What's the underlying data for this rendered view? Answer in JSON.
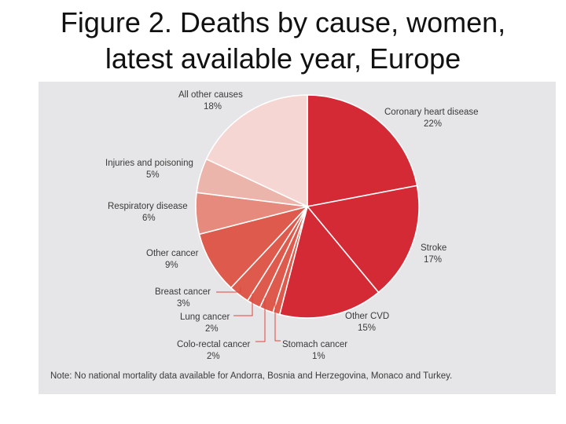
{
  "slide": {
    "title_line1": "Figure 2. Deaths by cause, women,",
    "title_line2": "latest available year, Europe"
  },
  "chart_data": {
    "type": "pie",
    "title": "Figure 2. Deaths by cause, women, latest available year, Europe",
    "slices": [
      {
        "label": "Coronary heart disease",
        "value": 22,
        "display": "22%",
        "color": "#d42a36"
      },
      {
        "label": "Stroke",
        "value": 17,
        "display": "17%",
        "color": "#d42a36"
      },
      {
        "label": "Other CVD",
        "value": 15,
        "display": "15%",
        "color": "#d42a36"
      },
      {
        "label": "Stomach cancer",
        "value": 1,
        "display": "1%",
        "color": "#de5a4c"
      },
      {
        "label": "Colo-rectal cancer",
        "value": 2,
        "display": "2%",
        "color": "#de5a4c"
      },
      {
        "label": "Lung cancer",
        "value": 2,
        "display": "2%",
        "color": "#de5a4c"
      },
      {
        "label": "Breast cancer",
        "value": 3,
        "display": "3%",
        "color": "#de5a4c"
      },
      {
        "label": "Other cancer",
        "value": 9,
        "display": "9%",
        "color": "#de5a4c"
      },
      {
        "label": "Respiratory disease",
        "value": 6,
        "display": "6%",
        "color": "#e58a7c"
      },
      {
        "label": "Injuries and poisoning",
        "value": 5,
        "display": "5%",
        "color": "#ecb5ab"
      },
      {
        "label": "All other causes",
        "value": 18,
        "display": "18%",
        "color": "#f5d6d2"
      }
    ],
    "note": "Note: No national mortality data available for Andorra, Bosnia and Herzegovina, Monaco and Turkey."
  }
}
